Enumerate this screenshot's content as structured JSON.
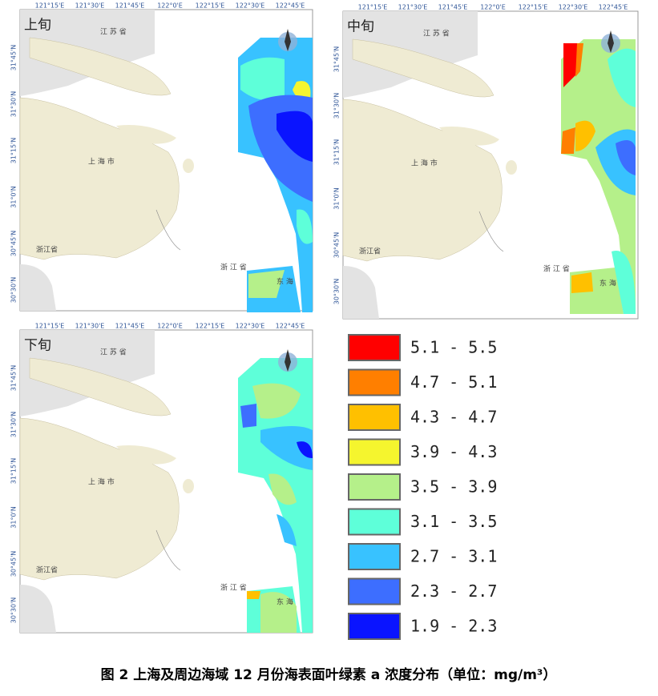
{
  "panels": [
    {
      "title": "上旬"
    },
    {
      "title": "中旬"
    },
    {
      "title": "下旬"
    }
  ],
  "lon_ticks": [
    "121°15'E",
    "121°30'E",
    "121°45'E",
    "122°0'E",
    "122°15'E",
    "122°30'E",
    "122°45'E"
  ],
  "lat_ticks": [
    "31°45'N",
    "31°30'N",
    "31°15'N",
    "31°0'N",
    "30°45'N",
    "30°30'N"
  ],
  "map_labels": [
    "江 苏 省",
    "上 海 市",
    "浙江省",
    "浙 江 省",
    "东 海"
  ],
  "legend": [
    {
      "label": "5.1 - 5.5",
      "color": "#ff0000"
    },
    {
      "label": "4.7 - 5.1",
      "color": "#ff7f00"
    },
    {
      "label": "4.3 - 4.7",
      "color": "#ffc000"
    },
    {
      "label": "3.9 - 4.3",
      "color": "#f5f52e"
    },
    {
      "label": "3.5 - 3.9",
      "color": "#b5f08a"
    },
    {
      "label": "3.1 - 3.5",
      "color": "#5effd9"
    },
    {
      "label": "2.7 - 3.1",
      "color": "#38c2ff"
    },
    {
      "label": "2.3 - 2.7",
      "color": "#3d6eff"
    },
    {
      "label": "1.9 - 2.3",
      "color": "#0a14ff"
    }
  ],
  "caption": "图 2 上海及周边海域 12 月份海表面叶绿素 a 浓度分布（单位：mg/m³）"
}
